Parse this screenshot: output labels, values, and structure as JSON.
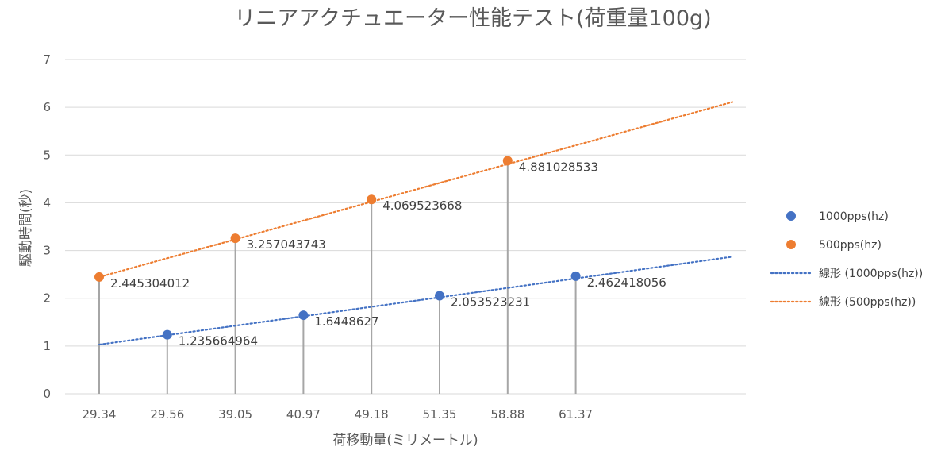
{
  "chart_data": {
    "type": "scatter",
    "title": "リニアアクチュエーター性能テスト(荷重量100g)",
    "xlabel": "荷移動量(ミリメートル)",
    "ylabel": "駆動時間(秒)",
    "ylim": [
      0,
      7
    ],
    "yticks": [
      "0",
      "1",
      "2",
      "3",
      "4",
      "5",
      "6",
      "7"
    ],
    "categories": [
      "29.34",
      "29.56",
      "39.05",
      "40.97",
      "49.18",
      "51.35",
      "58.88",
      "61.37"
    ],
    "grid": "horizontal",
    "legend_position": "right",
    "series": [
      {
        "name": "1000pps(hz)",
        "color": "#4472C4",
        "points": [
          {
            "x": "29.56",
            "y": 1.235664964,
            "label": "1.235664964"
          },
          {
            "x": "40.97",
            "y": 1.6448627,
            "label": "1.6448627"
          },
          {
            "x": "51.35",
            "y": 2.053523231,
            "label": "2.053523231"
          },
          {
            "x": "61.37",
            "y": 2.462418056,
            "label": "2.462418056"
          }
        ]
      },
      {
        "name": "500pps(hz)",
        "color": "#ED7D31",
        "points": [
          {
            "x": "29.34",
            "y": 2.445304012,
            "label": "2.445304012"
          },
          {
            "x": "39.05",
            "y": 3.257043743,
            "label": "3.257043743"
          },
          {
            "x": "49.18",
            "y": 4.069523668,
            "label": "4.069523668"
          },
          {
            "x": "58.88",
            "y": 4.881028533,
            "label": "4.881028533"
          }
        ]
      }
    ],
    "trendlines": [
      {
        "name": "線形 (1000pps(hz))",
        "color": "#4472C4",
        "style": "dotted",
        "type": "linear",
        "from": {
          "x_index": 0,
          "y": 1.03
        },
        "to": {
          "x_index": 9.3,
          "y": 2.87
        }
      },
      {
        "name": "線形 (500pps(hz))",
        "color": "#ED7D31",
        "style": "dotted",
        "type": "linear",
        "from": {
          "x_index": 0,
          "y": 2.445
        },
        "to": {
          "x_index": 9.3,
          "y": 6.11
        }
      }
    ],
    "legend": [
      {
        "label": "1000pps(hz)",
        "kind": "marker",
        "color": "#4472C4"
      },
      {
        "label": "500pps(hz)",
        "kind": "marker",
        "color": "#ED7D31"
      },
      {
        "label": "線形 (1000pps(hz))",
        "kind": "dotted-line",
        "color": "#4472C4"
      },
      {
        "label": "線形 (500pps(hz))",
        "kind": "dotted-line",
        "color": "#ED7D31"
      }
    ]
  }
}
